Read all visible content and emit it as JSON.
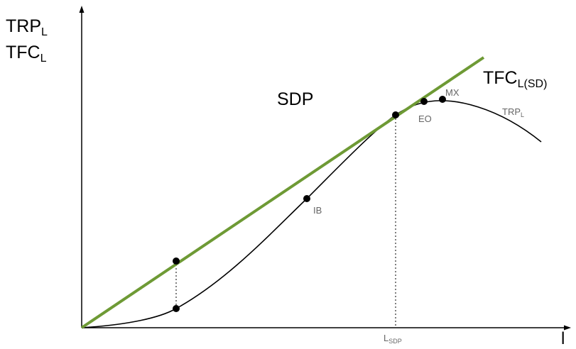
{
  "axes": {
    "y_label_main_1": "TRP",
    "y_label_sub_1": "L",
    "y_label_main_2": "TFC",
    "y_label_sub_2": "L",
    "x_label": "l"
  },
  "lines": {
    "tfc_main": "TFC",
    "tfc_sub": "L(SD)",
    "trp_main": "TRP",
    "trp_sub": "L",
    "color_tfc": "#6e9a35",
    "color_trp": "#000000"
  },
  "region_label": "SDP",
  "points": {
    "ib": "IB",
    "eo": "EO",
    "mx": "MX"
  },
  "x_marker": {
    "main": "L",
    "sub": "SDP"
  }
}
